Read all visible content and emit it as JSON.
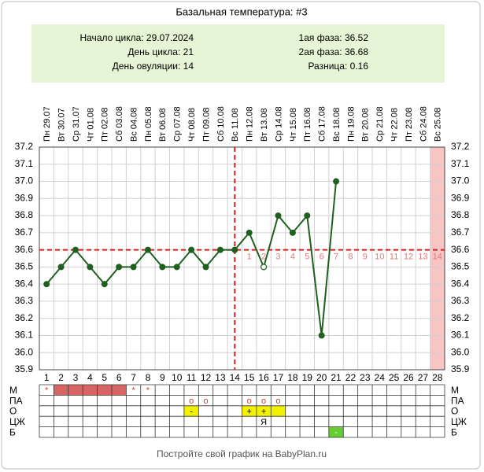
{
  "title": "Базальная температура: #3",
  "info": {
    "left": [
      "Начало цикла: 29.07.2024",
      "День цикла: 21",
      "День овуляции: 14"
    ],
    "right": [
      "1ая фаза: 36.52",
      "2ая фаза: 36.68",
      "Разница: 0.16"
    ]
  },
  "chart_data": {
    "type": "line",
    "categories": [
      1,
      2,
      3,
      4,
      5,
      6,
      7,
      8,
      9,
      10,
      11,
      12,
      13,
      14,
      15,
      16,
      17,
      18,
      19,
      20,
      21,
      22,
      23,
      24,
      25,
      26,
      27,
      28
    ],
    "dates": [
      "Пн 29.07",
      "Вт 30.07",
      "Ср 31.07",
      "Чт 01.08",
      "Пт 02.08",
      "Сб 03.08",
      "Вс 04.08",
      "Пн 05.08",
      "Вт 06.08",
      "Ср 07.08",
      "Чт 08.08",
      "Пт 09.08",
      "Сб 10.08",
      "Вс 11.08",
      "Пн 12.08",
      "Вт 13.08",
      "Ср 14.08",
      "Чт 15.08",
      "Пт 16.08",
      "Сб 17.08",
      "Вс 18.08",
      "Пн 19.08",
      "Вт 20.08",
      "Ср 21.08",
      "Чт 22.08",
      "Пт 23.08",
      "Сб 24.08",
      "Вс 25.08"
    ],
    "values": [
      36.4,
      36.5,
      36.6,
      36.5,
      36.4,
      36.5,
      36.5,
      36.6,
      36.5,
      36.5,
      36.6,
      36.5,
      36.6,
      36.6,
      36.7,
      36.5,
      36.8,
      36.7,
      36.8,
      36.1,
      37.0,
      null,
      null,
      null,
      null,
      null,
      null,
      null
    ],
    "color": "#1f5f1f",
    "ylim": [
      35.9,
      37.2
    ],
    "yticks": [
      37.2,
      37.1,
      {
        "value": 37,
        "label": "37.0"
      },
      36.9,
      36.8,
      36.7,
      36.6,
      36.5,
      36.4,
      36.3,
      36.2,
      36.1,
      {
        "value": 36,
        "label": "36.0"
      },
      35.9
    ],
    "grid": true,
    "coverline": 36.6,
    "ovulation_day": 14,
    "phase_days": [
      1,
      2,
      3,
      4,
      5,
      6,
      7,
      8,
      9,
      10,
      11,
      12,
      13,
      14
    ],
    "highlight_days": [
      28
    ],
    "open_points": [
      16
    ]
  },
  "table": {
    "rows": [
      {
        "label": "М",
        "cells": [
          {
            "day": 1,
            "text": "*"
          },
          {
            "day": 2,
            "fill": "#d96464"
          },
          {
            "day": 3,
            "fill": "#d96464"
          },
          {
            "day": 4,
            "fill": "#d96464"
          },
          {
            "day": 5,
            "fill": "#d96464"
          },
          {
            "day": 6,
            "fill": "#d96464"
          },
          {
            "day": 7,
            "text": "*"
          },
          {
            "day": 8,
            "text": "*"
          }
        ]
      },
      {
        "label": "ПА",
        "cells": [
          {
            "day": 11,
            "text": "o"
          },
          {
            "day": 12,
            "text": "o"
          },
          {
            "day": 15,
            "text": "o"
          },
          {
            "day": 16,
            "text": "o"
          },
          {
            "day": 17,
            "text": "o"
          }
        ]
      },
      {
        "label": "О",
        "cells": [
          {
            "day": 11,
            "text": "-",
            "fill": "#f2f200"
          },
          {
            "day": 15,
            "text": "+",
            "fill": "#f2f200"
          },
          {
            "day": 16,
            "text": "+",
            "fill": "#f2f200"
          },
          {
            "day": 17,
            "fill": "#f2f200"
          }
        ]
      },
      {
        "label": "ЦЖ",
        "cells": [
          {
            "day": 16,
            "text": "Я"
          }
        ]
      },
      {
        "label": "Б",
        "cells": [
          {
            "day": 21,
            "text": "-",
            "fill": "#66cc33"
          }
        ]
      }
    ]
  },
  "footer": "Постройте свой график на BabyPlan.ru"
}
